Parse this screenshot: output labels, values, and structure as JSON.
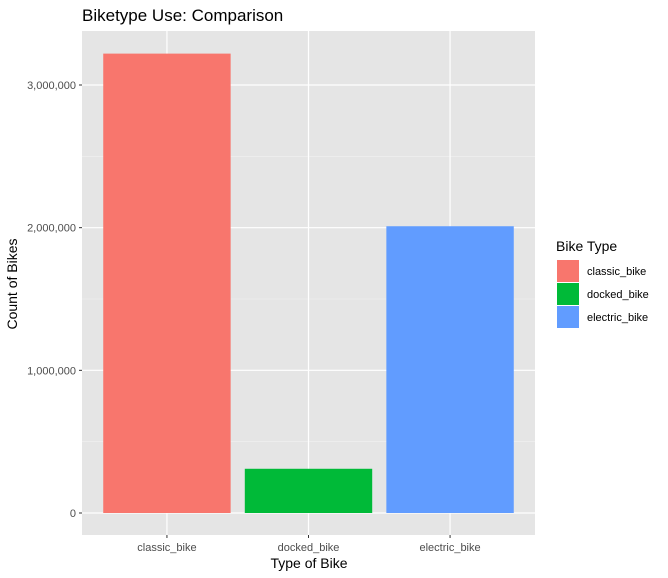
{
  "chart_data": {
    "type": "bar",
    "title": "Biketype Use: Comparison",
    "xlabel": "Type of Bike",
    "ylabel": "Count of Bikes",
    "categories": [
      "classic_bike",
      "docked_bike",
      "electric_bike"
    ],
    "values": [
      3220000,
      310000,
      2010000
    ],
    "colors": [
      "#F8766D",
      "#00BA38",
      "#619CFF"
    ],
    "ylim": [
      0,
      3400000
    ],
    "yticks": [
      0,
      1000000,
      2000000,
      3000000
    ],
    "ytick_labels": [
      "0",
      "1,000,000",
      "2,000,000",
      "3,000,000"
    ],
    "grid": true,
    "panel_background": "#E5E5E5",
    "legend": {
      "title": "Bike Type",
      "position": "right",
      "entries": [
        "classic_bike",
        "docked_bike",
        "electric_bike"
      ]
    }
  }
}
